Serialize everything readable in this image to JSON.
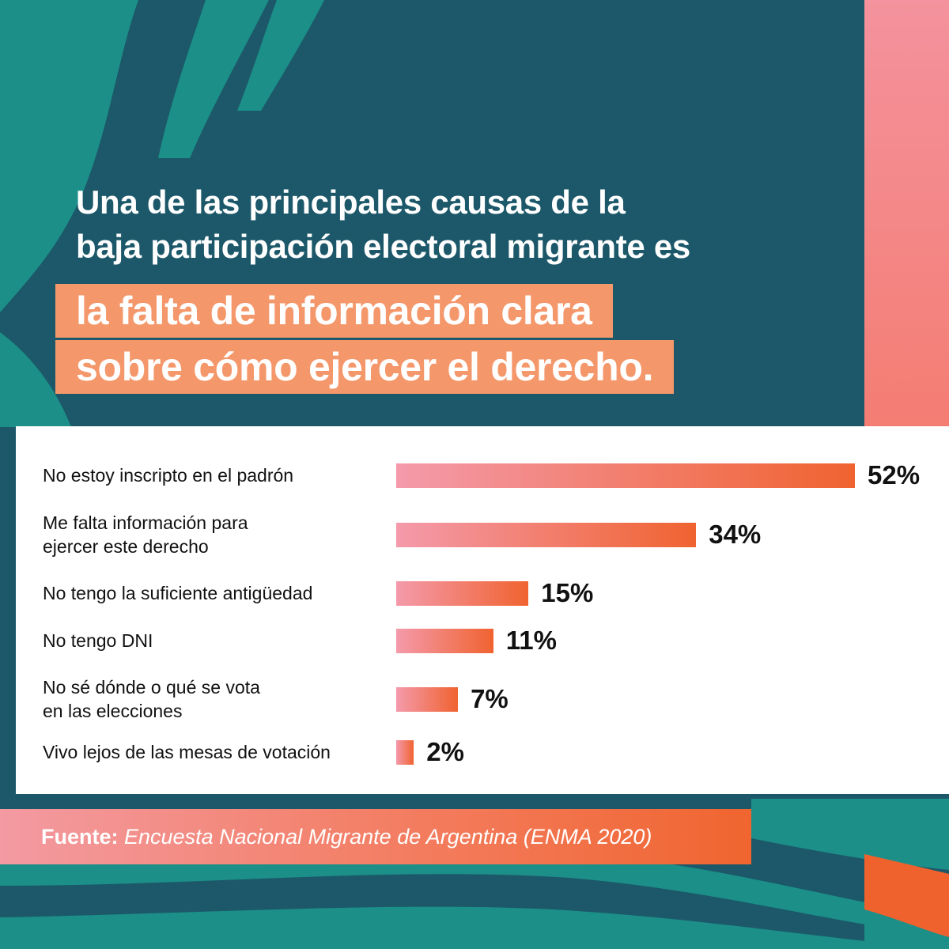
{
  "heading": {
    "line1": "Una de  las principales causas de la",
    "line2": "baja participación electoral migrante es",
    "highlight1": "la falta de información clara",
    "highlight2": "sobre cómo ejercer el derecho."
  },
  "chart_data": {
    "type": "bar",
    "orientation": "horizontal",
    "categories": [
      [
        "No estoy inscripto en el padrón"
      ],
      [
        "Me falta información para",
        "ejercer este derecho"
      ],
      [
        "No tengo la suficiente antigüedad"
      ],
      [
        "No tengo DNI"
      ],
      [
        "No sé dónde o qué se vota",
        "en las elecciones"
      ],
      [
        "Vivo lejos de las mesas de votación"
      ]
    ],
    "values": [
      52,
      34,
      15,
      11,
      7,
      2
    ],
    "value_labels": [
      "52%",
      "34%",
      "15%",
      "11%",
      "7%",
      "2%"
    ],
    "unit": "%",
    "xlim": [
      0,
      52
    ],
    "grid": false,
    "legend": "none"
  },
  "source": {
    "label": "Fuente:",
    "text": "Encuesta Nacional Migrante de Argentina (ENMA 2020)"
  },
  "colors": {
    "background": "#1c5869",
    "wave_teal": "#1b8f88",
    "highlight": "#f4976b",
    "bar_start": "#f49aab",
    "bar_end": "#f06330",
    "pink_strip": "#f4929d",
    "orange_accent": "#f0622d"
  }
}
